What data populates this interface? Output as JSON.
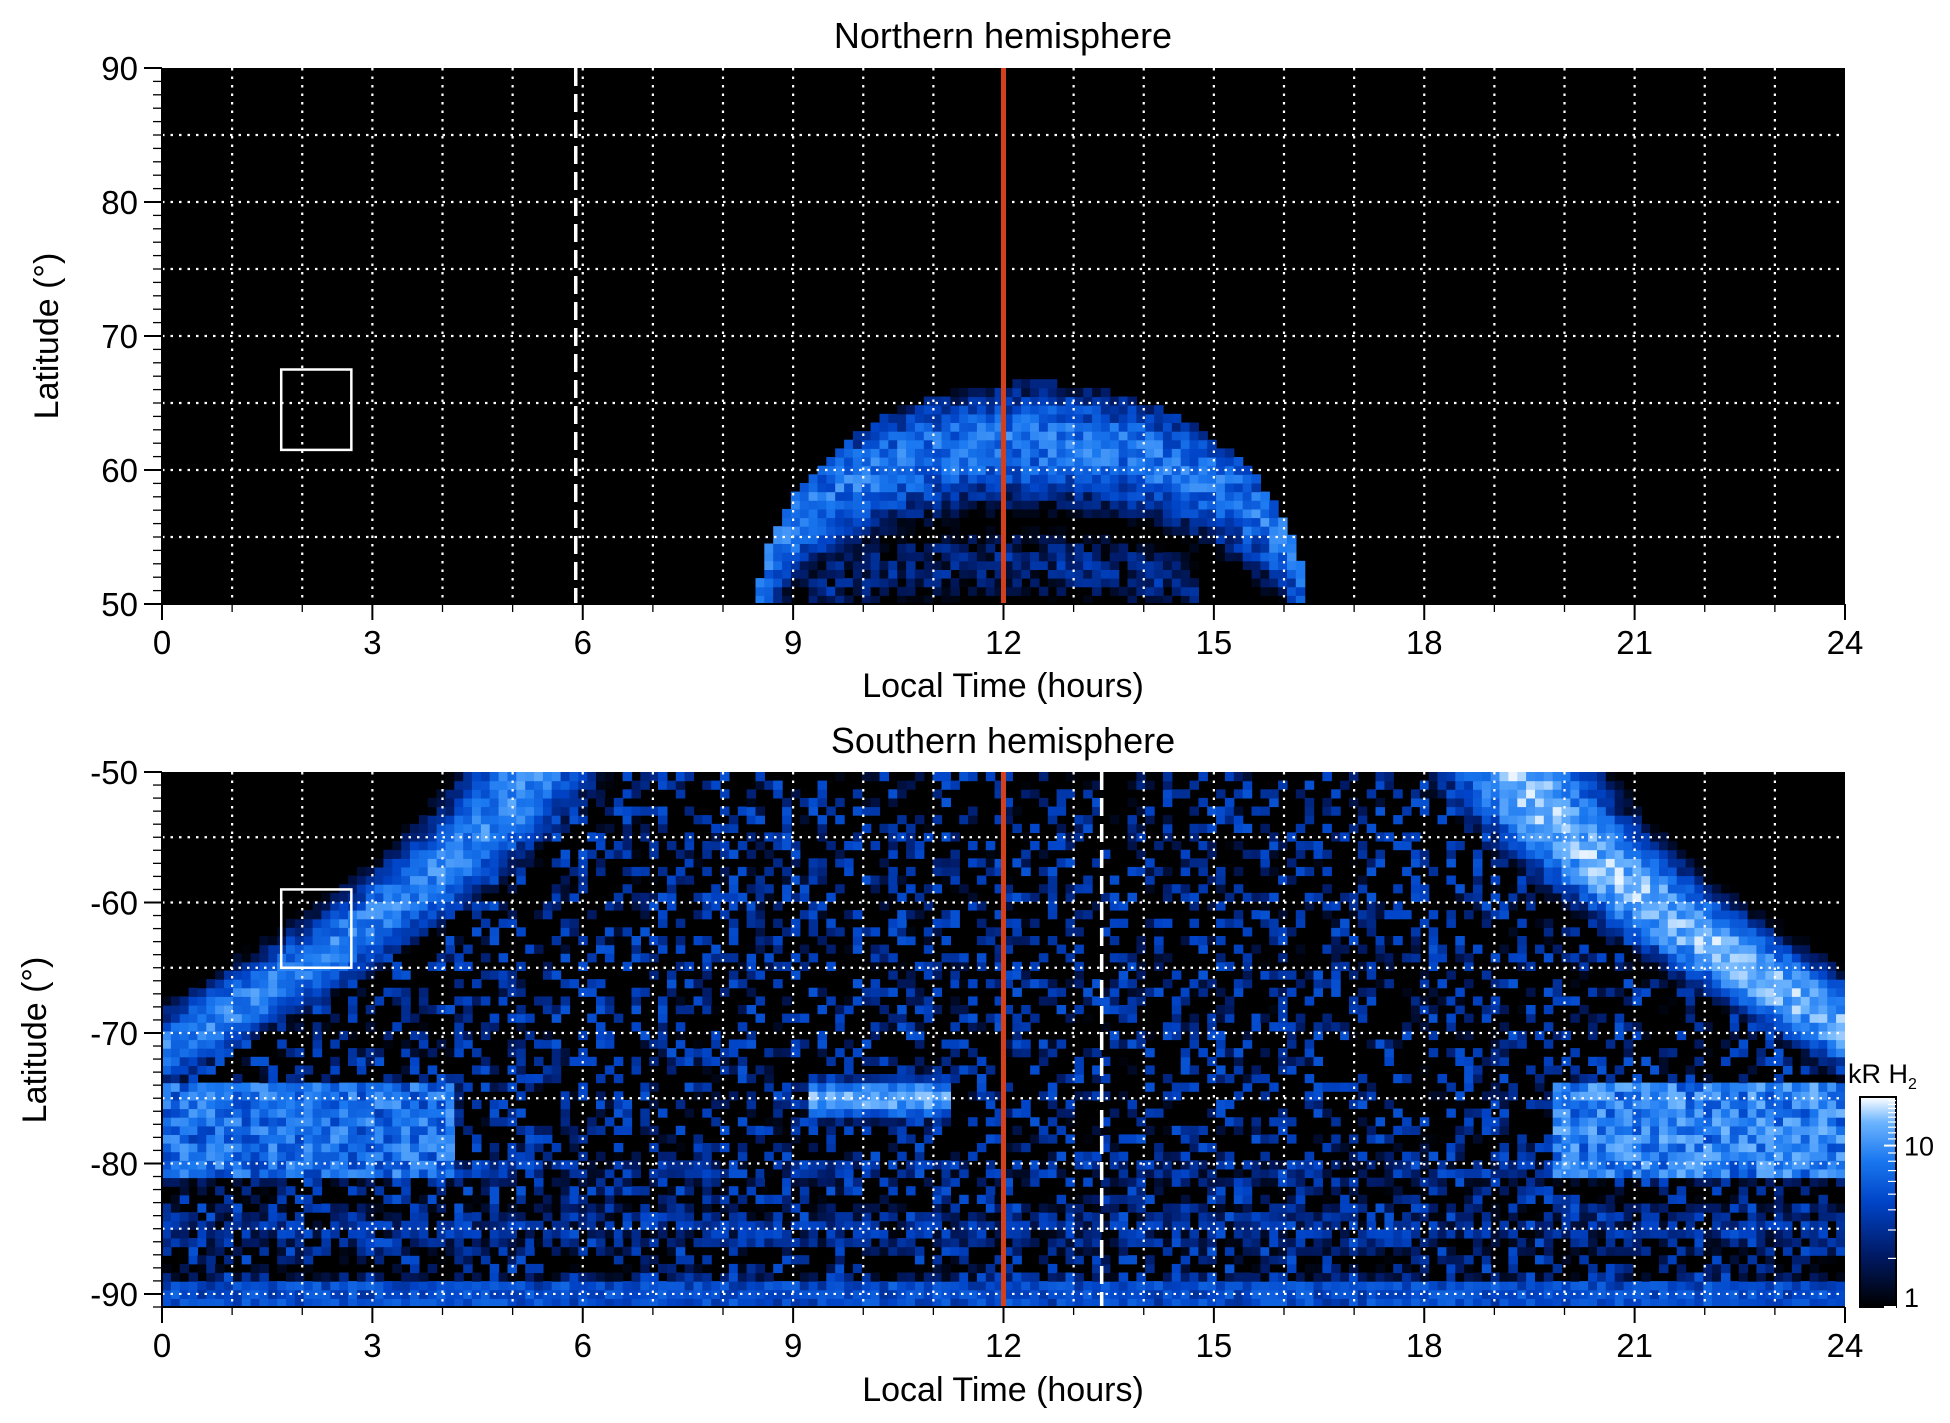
{
  "colors": {
    "background": "#000000",
    "grid": "#ffffff",
    "noon_line": "#d2401e",
    "marker_line": "#ffffff",
    "colormap": [
      "#000000",
      "#001a66",
      "#0044c8",
      "#1a78f0",
      "#6cb4ff",
      "#ffffff"
    ]
  },
  "chart_data": [
    {
      "type": "heatmap",
      "title": "Northern hemisphere",
      "xlabel": "Local Time (hours)",
      "ylabel": "Latitude (°)",
      "xlim": [
        0,
        24
      ],
      "ylim": [
        50,
        90
      ],
      "xticks": [
        0,
        3,
        6,
        9,
        12,
        15,
        18,
        21,
        24
      ],
      "yticks": [
        50,
        60,
        70,
        80,
        90
      ],
      "grid": true,
      "noon_line_x": 12,
      "dashed_marker_x": 5.9,
      "box": {
        "x": [
          1.7,
          2.7
        ],
        "y": [
          61.5,
          67.5
        ]
      },
      "emission": {
        "main_oval": {
          "lt_range": [
            8.5,
            16.3
          ],
          "peak_lat_at_noon": 62,
          "max_lat": 67.5,
          "intensity_kR": 8
        },
        "inner_band": {
          "lt_range": [
            9.2,
            14.8
          ],
          "peak_lat_at_noon": 53,
          "intensity_kR": 3
        }
      }
    },
    {
      "type": "heatmap",
      "title": "Southern hemisphere",
      "xlabel": "Local Time (hours)",
      "ylabel": "Latitude (°)",
      "xlim": [
        0,
        24
      ],
      "ylim": [
        -91,
        -50
      ],
      "xticks": [
        0,
        3,
        6,
        9,
        12,
        15,
        18,
        21,
        24
      ],
      "yticks": [
        -90,
        -80,
        -70,
        -60,
        -50
      ],
      "grid": true,
      "noon_line_x": 12,
      "dashed_marker_x": 13.4,
      "box": {
        "x": [
          1.7,
          2.7
        ],
        "y": [
          -65,
          -59
        ]
      },
      "emission": {
        "dawn_arc": {
          "lt_at_-50": 5.8,
          "lt_at_-70": 1.0,
          "intensity_kR": 10
        },
        "dusk_arc": {
          "lt_at_-50": 18.8,
          "lt_at_-70": 23.6,
          "intensity_kR": 15
        },
        "noon_patch": {
          "lt_range": [
            9.2,
            11.2
          ],
          "lat": -75,
          "intensity_kR": 15
        },
        "polar_background_kR": 3
      }
    }
  ],
  "colorbar": {
    "label_main": "kR H",
    "label_sub": "2",
    "scale": "log",
    "range": [
      1,
      20
    ],
    "ticks": [
      1,
      10
    ],
    "tick_labels": [
      "1",
      "10"
    ]
  }
}
